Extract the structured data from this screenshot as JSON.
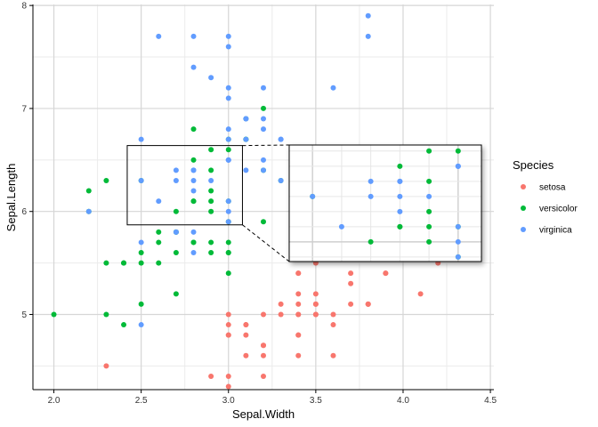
{
  "chart_data": {
    "type": "scatter",
    "xlabel": "Sepal.Width",
    "ylabel": "Sepal.Length",
    "xlim": [
      1.88,
      4.52
    ],
    "ylim": [
      4.27,
      8.01
    ],
    "x_ticks": [
      2.0,
      2.5,
      3.0,
      3.5,
      4.0,
      4.5
    ],
    "x_tick_labels": [
      "2.0",
      "2.5",
      "3.0",
      "3.5",
      "4.0",
      "4.5"
    ],
    "y_ticks": [
      5,
      6,
      7,
      8
    ],
    "y_tick_labels": [
      "5",
      "6",
      "7",
      "8"
    ],
    "grid": true,
    "legend": {
      "title": "Species",
      "position": "right"
    },
    "zoom_inset": {
      "source_xlim": [
        2.42,
        3.08
      ],
      "source_ylim": [
        5.87,
        6.64
      ],
      "magnified": true
    },
    "series": [
      {
        "name": "setosa",
        "color": "#F8766D",
        "points": [
          [
            3.5,
            5.1
          ],
          [
            3.0,
            4.9
          ],
          [
            3.2,
            4.7
          ],
          [
            3.1,
            4.6
          ],
          [
            3.6,
            5.0
          ],
          [
            3.9,
            5.4
          ],
          [
            3.4,
            4.6
          ],
          [
            3.4,
            5.0
          ],
          [
            2.9,
            4.4
          ],
          [
            3.1,
            4.9
          ],
          [
            3.7,
            5.4
          ],
          [
            3.4,
            4.8
          ],
          [
            3.0,
            4.8
          ],
          [
            3.0,
            4.3
          ],
          [
            4.0,
            5.8
          ],
          [
            4.4,
            5.7
          ],
          [
            3.9,
            5.4
          ],
          [
            3.5,
            5.1
          ],
          [
            3.8,
            5.7
          ],
          [
            3.8,
            5.1
          ],
          [
            3.4,
            5.4
          ],
          [
            3.7,
            5.1
          ],
          [
            3.6,
            4.6
          ],
          [
            3.3,
            5.1
          ],
          [
            3.4,
            4.8
          ],
          [
            3.0,
            5.0
          ],
          [
            3.4,
            5.0
          ],
          [
            3.5,
            5.2
          ],
          [
            3.4,
            5.2
          ],
          [
            3.2,
            4.7
          ],
          [
            3.1,
            4.8
          ],
          [
            3.4,
            5.4
          ],
          [
            4.1,
            5.2
          ],
          [
            4.2,
            5.5
          ],
          [
            3.1,
            4.9
          ],
          [
            3.2,
            5.0
          ],
          [
            3.5,
            5.5
          ],
          [
            3.6,
            4.9
          ],
          [
            3.0,
            4.4
          ],
          [
            3.4,
            5.1
          ],
          [
            3.5,
            5.0
          ],
          [
            2.3,
            4.5
          ],
          [
            3.2,
            4.4
          ],
          [
            3.5,
            5.0
          ],
          [
            3.8,
            5.1
          ],
          [
            3.0,
            4.8
          ],
          [
            3.8,
            5.1
          ],
          [
            3.2,
            4.6
          ],
          [
            3.7,
            5.3
          ],
          [
            3.3,
            5.0
          ]
        ]
      },
      {
        "name": "versicolor",
        "color": "#00BA38",
        "points": [
          [
            3.2,
            7.0
          ],
          [
            3.2,
            6.4
          ],
          [
            3.1,
            6.9
          ],
          [
            2.3,
            5.5
          ],
          [
            2.8,
            6.5
          ],
          [
            2.8,
            5.7
          ],
          [
            3.3,
            6.3
          ],
          [
            2.4,
            4.9
          ],
          [
            2.9,
            6.6
          ],
          [
            2.7,
            5.2
          ],
          [
            2.0,
            5.0
          ],
          [
            3.0,
            5.9
          ],
          [
            2.2,
            6.0
          ],
          [
            2.9,
            6.1
          ],
          [
            2.9,
            5.6
          ],
          [
            3.1,
            6.7
          ],
          [
            3.0,
            5.6
          ],
          [
            2.7,
            5.8
          ],
          [
            2.2,
            6.2
          ],
          [
            2.5,
            5.6
          ],
          [
            3.2,
            5.9
          ],
          [
            2.8,
            6.1
          ],
          [
            2.5,
            6.3
          ],
          [
            2.8,
            6.1
          ],
          [
            2.9,
            6.4
          ],
          [
            3.0,
            6.6
          ],
          [
            2.8,
            6.8
          ],
          [
            3.0,
            6.7
          ],
          [
            2.9,
            6.0
          ],
          [
            2.6,
            5.7
          ],
          [
            2.4,
            5.5
          ],
          [
            2.4,
            5.5
          ],
          [
            2.7,
            5.8
          ],
          [
            2.7,
            6.0
          ],
          [
            3.0,
            5.4
          ],
          [
            3.4,
            6.0
          ],
          [
            3.1,
            6.7
          ],
          [
            2.3,
            6.3
          ],
          [
            3.0,
            5.6
          ],
          [
            2.5,
            5.5
          ],
          [
            2.6,
            5.5
          ],
          [
            3.0,
            6.1
          ],
          [
            2.6,
            5.8
          ],
          [
            2.3,
            5.0
          ],
          [
            2.7,
            5.6
          ],
          [
            3.0,
            5.7
          ],
          [
            2.9,
            5.7
          ],
          [
            2.9,
            6.2
          ],
          [
            2.5,
            5.1
          ],
          [
            2.8,
            5.7
          ]
        ]
      },
      {
        "name": "virginica",
        "color": "#619CFF",
        "points": [
          [
            3.3,
            6.3
          ],
          [
            2.7,
            5.8
          ],
          [
            3.0,
            7.1
          ],
          [
            2.9,
            6.3
          ],
          [
            3.0,
            6.5
          ],
          [
            3.0,
            7.6
          ],
          [
            2.5,
            4.9
          ],
          [
            2.9,
            7.3
          ],
          [
            2.5,
            6.7
          ],
          [
            3.6,
            7.2
          ],
          [
            3.2,
            6.5
          ],
          [
            2.7,
            6.4
          ],
          [
            3.0,
            6.8
          ],
          [
            2.5,
            5.7
          ],
          [
            2.8,
            5.8
          ],
          [
            3.2,
            6.4
          ],
          [
            3.0,
            6.5
          ],
          [
            3.8,
            7.7
          ],
          [
            2.6,
            7.7
          ],
          [
            2.2,
            6.0
          ],
          [
            3.2,
            6.9
          ],
          [
            2.8,
            5.6
          ],
          [
            2.8,
            7.7
          ],
          [
            2.7,
            6.3
          ],
          [
            3.3,
            6.7
          ],
          [
            3.2,
            7.2
          ],
          [
            2.8,
            6.2
          ],
          [
            3.0,
            6.1
          ],
          [
            2.8,
            6.4
          ],
          [
            3.0,
            7.2
          ],
          [
            2.8,
            7.4
          ],
          [
            3.8,
            7.9
          ],
          [
            2.8,
            6.4
          ],
          [
            2.8,
            6.3
          ],
          [
            2.6,
            6.1
          ],
          [
            3.0,
            7.7
          ],
          [
            3.4,
            6.3
          ],
          [
            3.1,
            6.4
          ],
          [
            3.0,
            6.0
          ],
          [
            3.1,
            6.9
          ],
          [
            3.1,
            6.7
          ],
          [
            3.1,
            6.9
          ],
          [
            2.7,
            5.8
          ],
          [
            3.2,
            6.8
          ],
          [
            3.3,
            6.7
          ],
          [
            3.0,
            6.7
          ],
          [
            2.5,
            6.3
          ],
          [
            3.0,
            6.5
          ],
          [
            3.4,
            6.2
          ],
          [
            3.0,
            5.9
          ]
        ]
      }
    ]
  }
}
